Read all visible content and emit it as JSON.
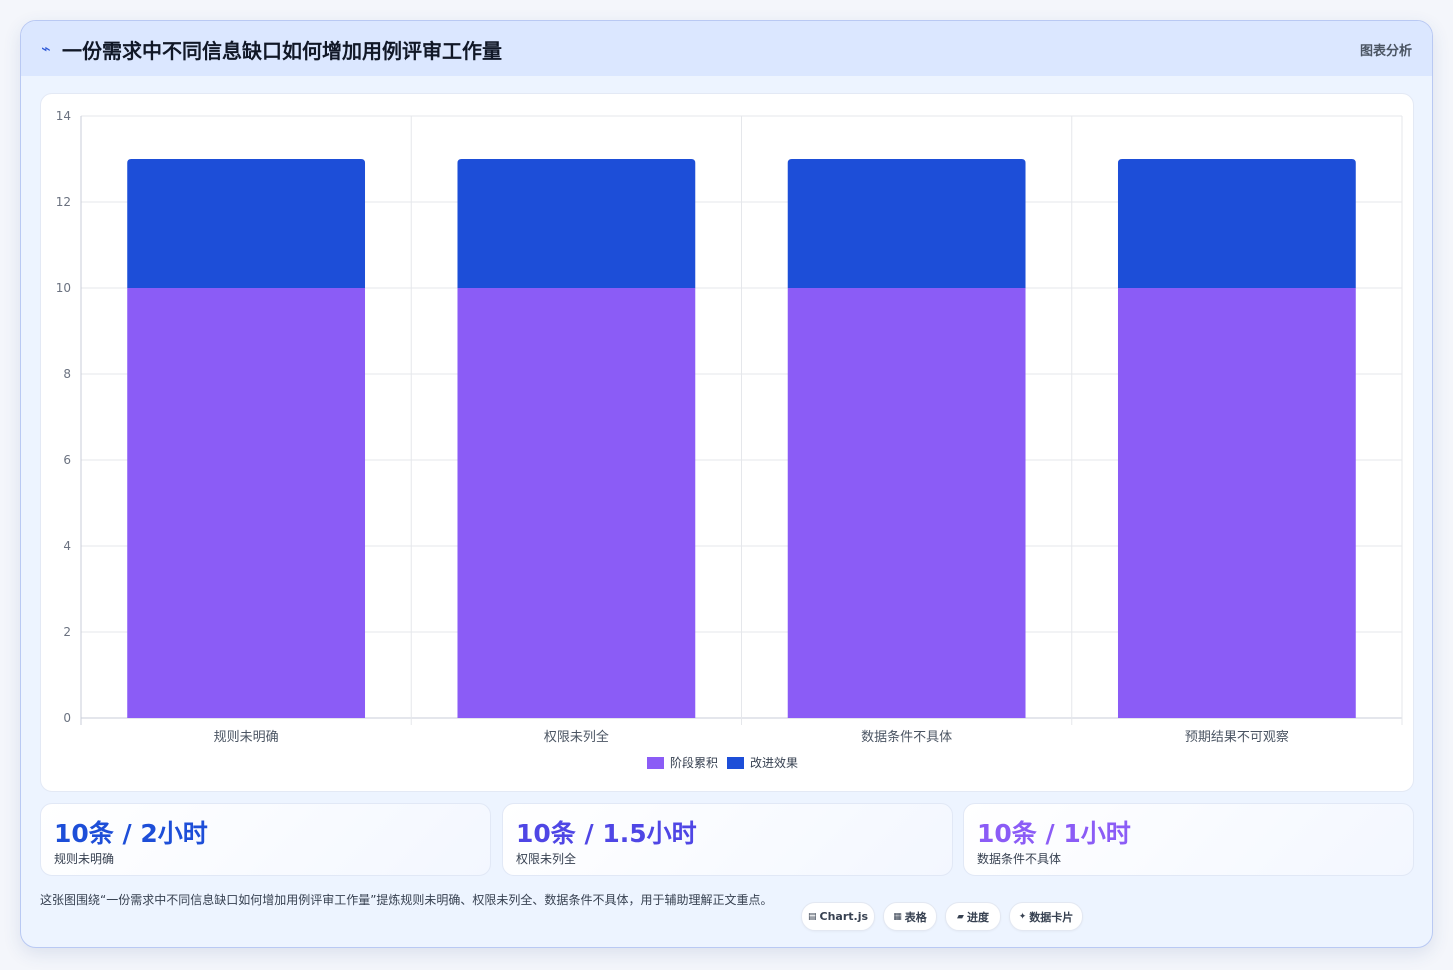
{
  "header": {
    "icon": "pulse-icon",
    "title": "一份需求中不同信息缺口如何增加用例评审工作量",
    "right_label": "图表分析"
  },
  "chart_data": {
    "type": "bar",
    "stacked": true,
    "categories": [
      "规则未明确",
      "权限未列全",
      "数据条件不具体",
      "预期结果不可观察"
    ],
    "series": [
      {
        "name": "阶段累积",
        "color": "#8b5cf6",
        "values": [
          10,
          10,
          10,
          10
        ]
      },
      {
        "name": "改进效果",
        "color": "#1d4ed8",
        "values": [
          3,
          3,
          3,
          3
        ]
      }
    ],
    "ylim": [
      0,
      14
    ],
    "yticks": [
      0,
      2,
      4,
      6,
      8,
      10,
      12,
      14
    ],
    "grid": true,
    "legend_position": "bottom"
  },
  "stats": [
    {
      "value": "10条 / 2小时",
      "label": "规则未明确",
      "color": "#1d4ed8"
    },
    {
      "value": "10条 / 1.5小时",
      "label": "权限未列全",
      "color": "#4f46e5"
    },
    {
      "value": "10条 / 1小时",
      "label": "数据条件不具体",
      "color": "#8b5cf6"
    }
  ],
  "footer": {
    "text": "这张图围绕“一份需求中不同信息缺口如何增加用例评审工作量”提炼规则未明确、权限未列全、数据条件不具体，用于辅助理解正文重点。"
  },
  "tags": [
    {
      "icon": "chart-icon",
      "glyph": "▤",
      "label": "Chart.js"
    },
    {
      "icon": "table-icon",
      "glyph": "▦",
      "label": "表格"
    },
    {
      "icon": "progress-icon",
      "glyph": "▰",
      "label": "进度"
    },
    {
      "icon": "sparkle-icon",
      "glyph": "✦",
      "label": "数据卡片"
    }
  ]
}
